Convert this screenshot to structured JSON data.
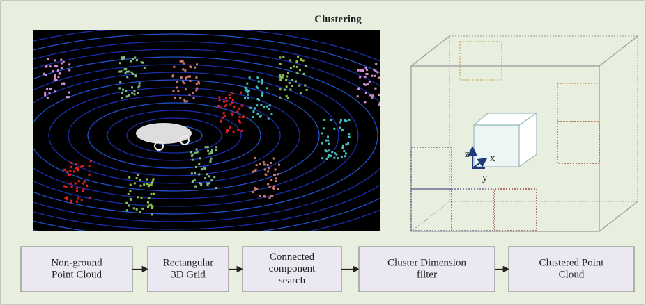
{
  "title": "Clustering",
  "axes": {
    "z": "z",
    "x": "x",
    "y": "y"
  },
  "nodes": [
    {
      "lines": [
        "Non-ground",
        "Point Cloud"
      ]
    },
    {
      "lines": [
        "Rectangular",
        "3D Grid"
      ]
    },
    {
      "lines": [
        "Connected",
        "component",
        "search"
      ]
    },
    {
      "lines": [
        "Cluster Dimension",
        "filter"
      ]
    },
    {
      "lines": [
        "Clustered Point",
        "Cloud"
      ]
    }
  ]
}
